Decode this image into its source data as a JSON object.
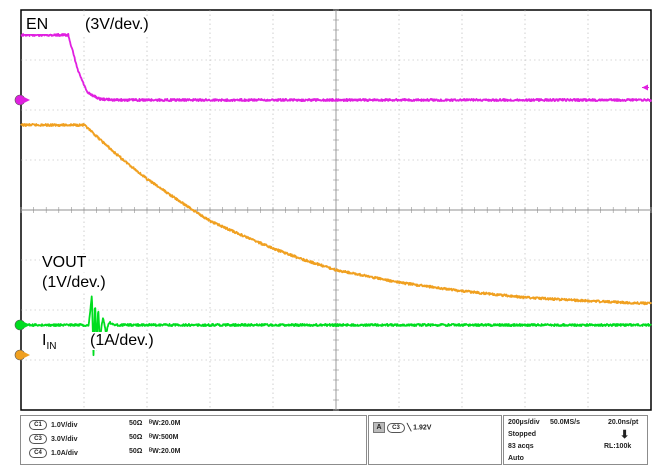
{
  "chart_data": {
    "type": "line",
    "title": "",
    "xlabel": "",
    "ylabel": "",
    "grid": true,
    "x_divisions": 10,
    "y_divisions": 8,
    "x_range_us": [
      0,
      2000
    ],
    "series": [
      {
        "name": "EN",
        "color": "#e020e0",
        "x_us": [
          0,
          100,
          150,
          180,
          210,
          250,
          300,
          400,
          2000
        ],
        "y_div": [
          3.5,
          3.5,
          3.5,
          2.8,
          2.35,
          2.22,
          2.2,
          2.2,
          2.2
        ]
      },
      {
        "name": "VOUT",
        "color": "#f0a020",
        "x_us": [
          0,
          200,
          300,
          400,
          500,
          600,
          700,
          800,
          900,
          1000,
          1200,
          1400,
          1600,
          1800,
          2000
        ],
        "y_div": [
          1.7,
          1.7,
          1.13,
          0.62,
          0.19,
          -0.22,
          -0.5,
          -0.77,
          -1.0,
          -1.2,
          -1.45,
          -1.62,
          -1.75,
          -1.82,
          -1.87
        ]
      },
      {
        "name": "IIN",
        "color": "#00dd20",
        "x_us": [
          0,
          215,
          225,
          230,
          235,
          240,
          245,
          250,
          260,
          270,
          280,
          300,
          2000
        ],
        "y_div": [
          -2.3,
          -2.3,
          -1.7,
          -2.9,
          -1.8,
          -2.8,
          -1.95,
          -2.6,
          -2.15,
          -2.45,
          -2.25,
          -2.3,
          -2.3
        ]
      }
    ],
    "annotations": {
      "en_label": "EN",
      "en_scale": "(3V/dev.)",
      "vout_label": "VOUT",
      "vout_scale": "(1V/dev.)",
      "iin_label_main": "I",
      "iin_label_sub": "IN",
      "iin_scale": "(1A/dev.)"
    }
  },
  "status_bar": {
    "channels": [
      {
        "id": "C1",
        "scale": "1.0V/div",
        "impedance": "50Ω",
        "bw": "ᴮW:20.0M"
      },
      {
        "id": "C3",
        "scale": "3.0V/div",
        "impedance": "50Ω",
        "bw": "ᴮW:500M"
      },
      {
        "id": "C4",
        "scale": "1.0A/div",
        "impedance": "50Ω",
        "bw": "ᴮW:20.0M"
      }
    ],
    "trigger": {
      "mode": "A",
      "source": "C3",
      "level": "1.92V"
    },
    "acquisition": {
      "timebase": "200µs/div",
      "sample_rate": "50.0MS/s",
      "resolution": "20.0ns/pt",
      "state": "Stopped",
      "acqs": "83 acqs",
      "record_length": "RL:100k",
      "mode": "Auto"
    }
  },
  "colors": {
    "ch3": "#e020e0",
    "ch1": "#f0a020",
    "ch4": "#00dd20",
    "grid": "#b0b0b0"
  }
}
